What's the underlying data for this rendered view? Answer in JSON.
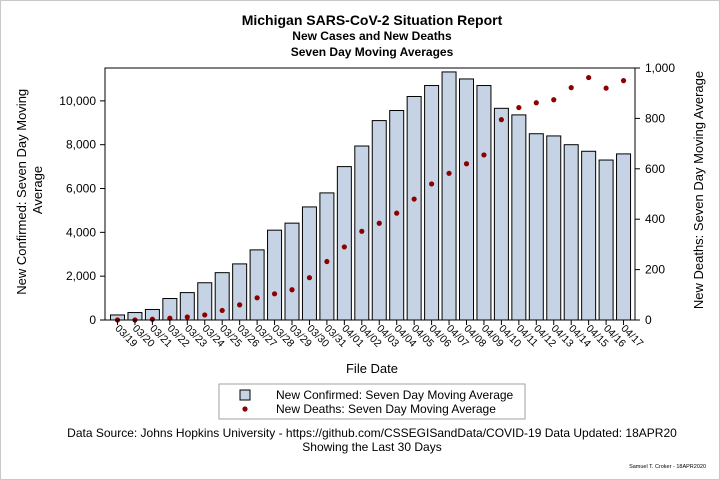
{
  "chart_data": {
    "type": "bar",
    "title": "Michigan SARS-CoV-2 Situation Report",
    "subtitle_1": "New Cases and New Deaths",
    "subtitle_2": "Seven Day Moving Averages",
    "xlabel": "File Date",
    "ylabel_left": "New Confirmed: Seven Day Moving Average",
    "ylabel_right": "New Deaths: Seven Day Moving Average",
    "ylim_left": [
      0,
      11500
    ],
    "ylim_right": [
      0,
      1000
    ],
    "yticks_left": [
      "0",
      "2,000",
      "4,000",
      "6,000",
      "8,000",
      "10,000"
    ],
    "yticks_left_values": [
      0,
      2000,
      4000,
      6000,
      8000,
      10000
    ],
    "yticks_right": [
      "0",
      "200",
      "400",
      "600",
      "800",
      "1,000"
    ],
    "yticks_right_values": [
      0,
      200,
      400,
      600,
      800,
      1000
    ],
    "categories": [
      "03/19",
      "03/20",
      "03/21",
      "03/22",
      "03/23",
      "03/24",
      "03/25",
      "03/26",
      "03/27",
      "03/28",
      "03/29",
      "03/30",
      "03/31",
      "04/01",
      "04/02",
      "04/03",
      "04/04",
      "04/05",
      "04/06",
      "04/07",
      "04/08",
      "04/09",
      "04/10",
      "04/11",
      "04/12",
      "04/13",
      "04/14",
      "04/15",
      "04/16",
      "04/17"
    ],
    "series": [
      {
        "name": "New Confirmed: Seven Day Moving Average",
        "type": "bar",
        "axis": "left",
        "color": "#c6d3e4",
        "values": [
          230,
          340,
          480,
          980,
          1250,
          1700,
          2160,
          2560,
          3200,
          4100,
          4420,
          5160,
          5800,
          7000,
          7940,
          9100,
          9560,
          10200,
          10700,
          11320,
          11000,
          10700,
          9660,
          9360,
          8500,
          8400,
          8000,
          7700,
          7300,
          7580
        ]
      },
      {
        "name": "New Deaths: Seven Day Moving Average",
        "type": "scatter",
        "axis": "right",
        "color": "#8b0000",
        "values": [
          0,
          0,
          3,
          7,
          12,
          20,
          38,
          60,
          88,
          104,
          120,
          168,
          232,
          290,
          352,
          384,
          424,
          480,
          540,
          582,
          620,
          655,
          795,
          843,
          862,
          874,
          922,
          962,
          920,
          950
        ]
      }
    ],
    "legend_placement": "bottom",
    "grid": false
  },
  "footer": {
    "source": "Data Source: Johns Hopkins University - https://github.com/CSSEGISandData/COVID-19 Data Updated: 18APR20",
    "window": "Showing the Last 30 Days",
    "credit": "Samuel T. Croker - 18APR2020"
  },
  "colors": {
    "bar_fill": "#c6d3e4",
    "bar_stroke": "#000000",
    "marker": "#8b0000"
  }
}
